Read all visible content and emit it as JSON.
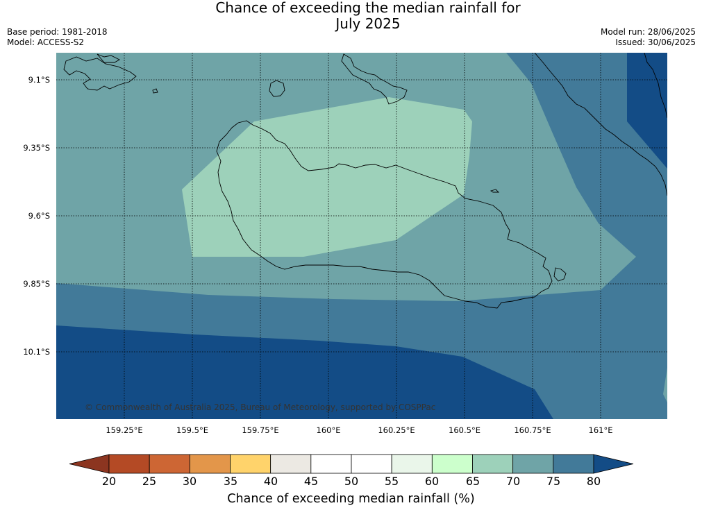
{
  "title_line1": "Chance of exceeding the median rainfall for",
  "title_line2": "July 2025",
  "meta_left": {
    "base_period": "Base period: 1981-2018",
    "model": "Model: ACCESS-S2"
  },
  "meta_right": {
    "model_run": "Model run: 28/06/2025",
    "issued": "Issued: 30/06/2025"
  },
  "map": {
    "lat_labels": [
      "9.1°S",
      "9.35°S",
      "9.6°S",
      "9.85°S",
      "10.1°S"
    ],
    "lon_labels": [
      "159.25°E",
      "159.5°E",
      "159.75°E",
      "160°E",
      "160.25°E",
      "160.5°E",
      "160.75°E",
      "161°E"
    ],
    "copyright": "© Commonwealth of Australia 2025, Bureau of Meteorology, supported by COSPPac",
    "zone_colors": {
      "band_65_70": "#9dd1ba",
      "band_70_75": "#6fa4a7",
      "band_75_80": "#427a99",
      "band_over_80": "#134c86"
    },
    "gridlines": "dotted"
  },
  "colorbar": {
    "title": "Chance of exceeding median rainfall (%)",
    "ticks": [
      "20",
      "25",
      "30",
      "35",
      "40",
      "45",
      "50",
      "55",
      "60",
      "65",
      "70",
      "75",
      "80"
    ],
    "under_color": "#8c3520",
    "over_color": "#134c86",
    "colors": [
      "#b44a25",
      "#cd6634",
      "#e3964a",
      "#ffd36b",
      "#ece9e3",
      "#ffffff",
      "#ffffff",
      "#eaf6ea",
      "#ccffcc",
      "#9dd1ba",
      "#6fa4a7",
      "#427a99"
    ]
  }
}
